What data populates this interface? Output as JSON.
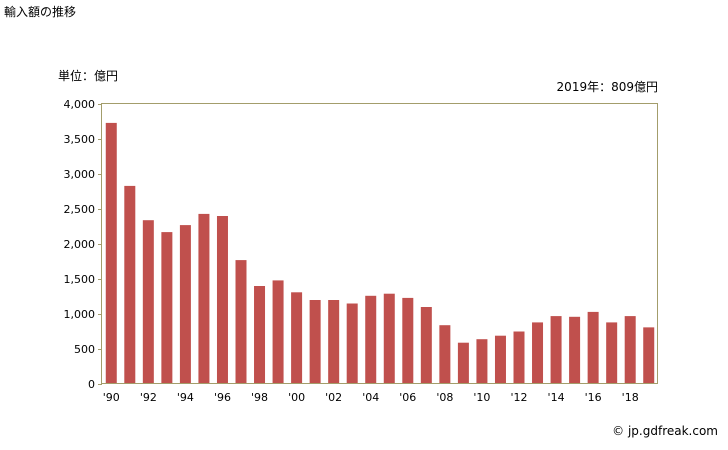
{
  "page": {
    "title": "輸入額の推移",
    "unit_label": "単位：億円",
    "annotation": "2019年：809億円",
    "credit": "© jp.gdfreak.com"
  },
  "chart_data": {
    "type": "bar",
    "title": "輸入額の推移",
    "xlabel": "",
    "ylabel": "単位：億円",
    "ylim": [
      0,
      4000
    ],
    "yticks": [
      0,
      500,
      1000,
      1500,
      2000,
      2500,
      3000,
      3500,
      4000
    ],
    "ytick_labels": [
      "0",
      "500",
      "1,000",
      "1,500",
      "2,000",
      "2,500",
      "3,000",
      "3,500",
      "4,000"
    ],
    "categories": [
      "'90",
      "'91",
      "'92",
      "'93",
      "'94",
      "'95",
      "'96",
      "'97",
      "'98",
      "'99",
      "'00",
      "'01",
      "'02",
      "'03",
      "'04",
      "'05",
      "'06",
      "'07",
      "'08",
      "'09",
      "'10",
      "'11",
      "'12",
      "'13",
      "'14",
      "'15",
      "'16",
      "'17",
      "'18",
      "'19"
    ],
    "xtick_labels": [
      "'90",
      "",
      "'92",
      "",
      "'94",
      "",
      "'96",
      "",
      "'98",
      "",
      "'00",
      "",
      "'02",
      "",
      "'04",
      "",
      "'06",
      "",
      "'08",
      "",
      "'10",
      "",
      "'12",
      "",
      "'14",
      "",
      "'16",
      "",
      "'18",
      ""
    ],
    "values": [
      3730,
      2830,
      2340,
      2170,
      2270,
      2430,
      2400,
      1770,
      1400,
      1480,
      1310,
      1200,
      1200,
      1150,
      1260,
      1290,
      1230,
      1100,
      840,
      590,
      640,
      690,
      750,
      880,
      970,
      960,
      1030,
      880,
      970,
      809
    ],
    "bar_color": "#c0504d",
    "grid": false,
    "legend": "none"
  }
}
